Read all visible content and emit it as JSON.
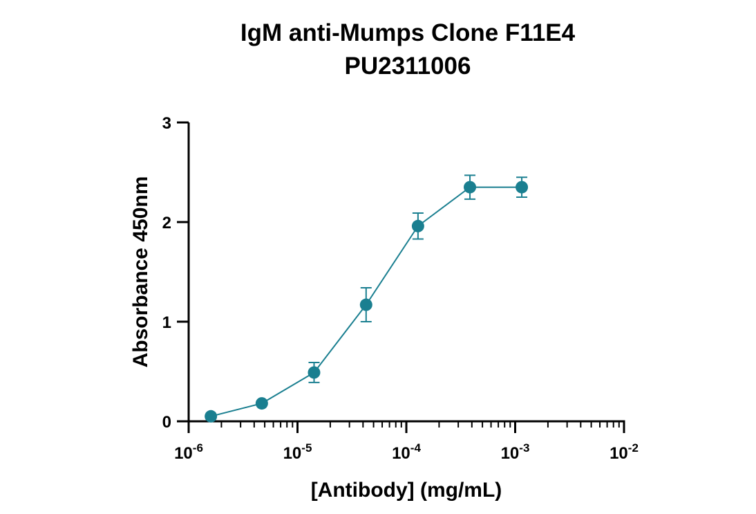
{
  "chart_data": {
    "type": "line",
    "title": "IgM anti-Mumps Clone F11E4",
    "subtitle": "PU2311006",
    "xlabel": "[Antibody] (mg/mL)",
    "ylabel": "Absorbance 450nm",
    "xscale": "log",
    "xlim": [
      1e-06,
      0.01
    ],
    "ylim": [
      0,
      3
    ],
    "grid": false,
    "color": "#1a7f90",
    "x_ticks": [
      {
        "base": "10",
        "exp": "-6",
        "value": 1e-06
      },
      {
        "base": "10",
        "exp": "-5",
        "value": 1e-05
      },
      {
        "base": "10",
        "exp": "-4",
        "value": 0.0001
      },
      {
        "base": "10",
        "exp": "-3",
        "value": 0.001
      },
      {
        "base": "10",
        "exp": "-2",
        "value": 0.01
      }
    ],
    "y_ticks": [
      "0",
      "1",
      "2",
      "3"
    ],
    "series": [
      {
        "x": [
          1.6e-06,
          4.7e-06,
          1.42e-05,
          4.27e-05,
          0.000128,
          0.000384,
          0.00115
        ],
        "y": [
          0.05,
          0.18,
          0.49,
          1.17,
          1.96,
          2.35,
          2.35
        ],
        "err": [
          0.0,
          0.0,
          0.1,
          0.17,
          0.13,
          0.12,
          0.1
        ]
      }
    ]
  }
}
